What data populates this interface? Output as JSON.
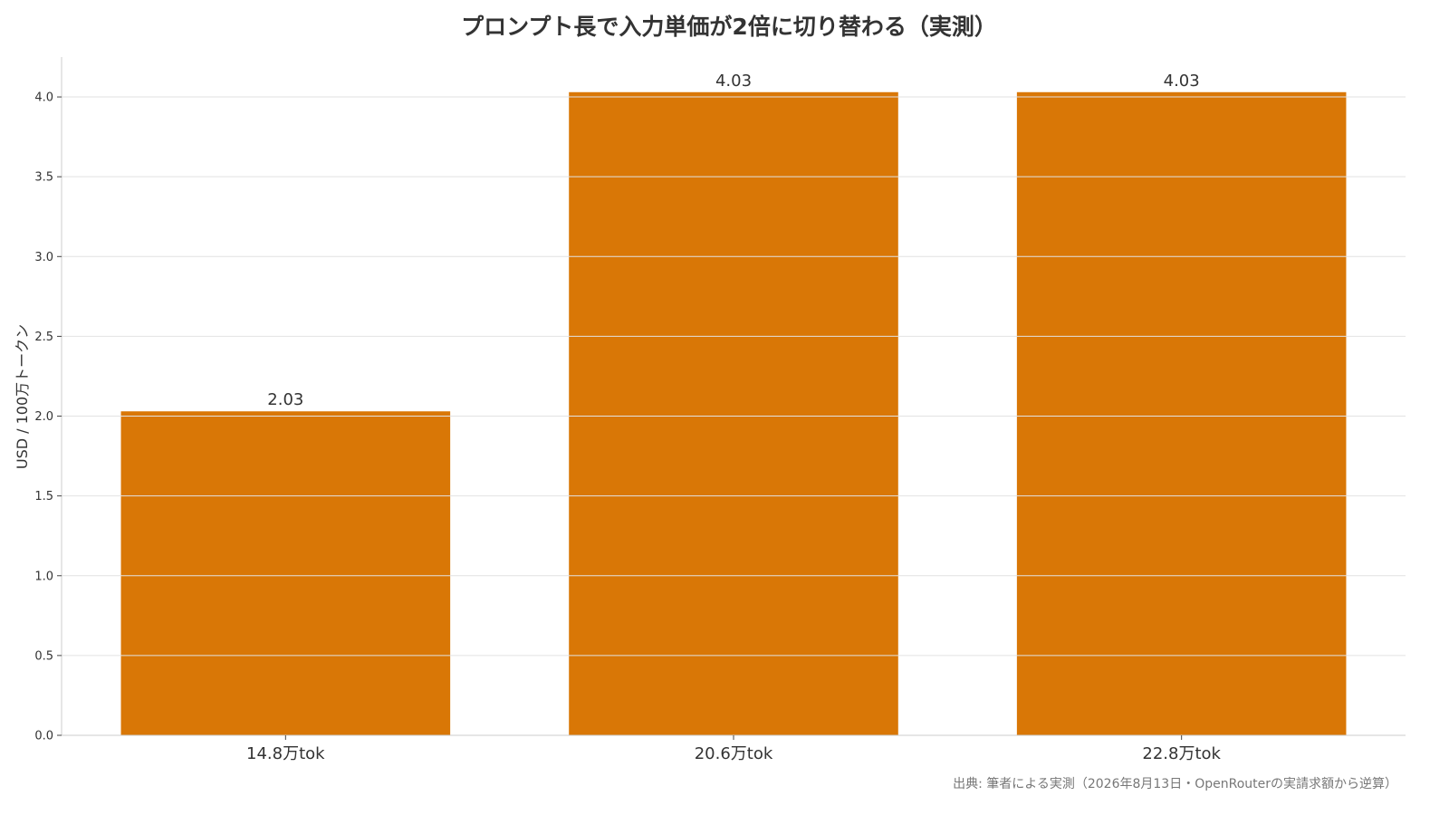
{
  "chart_data": {
    "type": "bar",
    "title": "プロンプト長で入力単価が2倍に切り替わる（実測）",
    "xlabel": "",
    "ylabel": "USD / 100万トークン",
    "categories": [
      "14.8万tok",
      "20.6万tok",
      "22.8万tok"
    ],
    "values": [
      2.03,
      4.03,
      4.03
    ],
    "data_labels": [
      "2.03",
      "4.03",
      "4.03"
    ],
    "ylim": [
      0,
      4.25
    ],
    "yticks": [
      0.0,
      0.5,
      1.0,
      1.5,
      2.0,
      2.5,
      3.0,
      3.5,
      4.0
    ],
    "ytick_labels": [
      "0.0",
      "0.5",
      "1.0",
      "1.5",
      "2.0",
      "2.5",
      "3.0",
      "3.5",
      "4.0"
    ],
    "grid": true,
    "bar_color": "#D97706",
    "source": "出典: 筆者による実測（2026年8月13日・OpenRouterの実請求額から逆算）"
  }
}
